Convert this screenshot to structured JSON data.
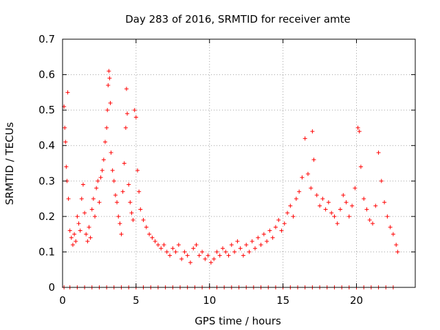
{
  "chart_data": {
    "type": "scatter",
    "title": "Day 283 of 2016, SRMTID for receiver amte",
    "xlabel": "GPS time / hours",
    "ylabel": "SRMTID / TECUs",
    "xlim": [
      0,
      24
    ],
    "ylim": [
      0,
      0.7
    ],
    "xticks": [
      0,
      5,
      10,
      15,
      20
    ],
    "xtick_labels": [
      "0",
      "5",
      "10",
      "15",
      "20"
    ],
    "yticks": [
      0,
      0.1,
      0.2,
      0.3,
      0.4,
      0.5,
      0.6,
      0.7
    ],
    "ytick_labels": [
      "0",
      "0.1",
      "0.2",
      "0.3",
      "0.4",
      "0.5",
      "0.6",
      "0.7"
    ],
    "grid": true,
    "marker": "+",
    "series": [
      {
        "name": "SRMTID",
        "color": "#ff0000",
        "x": [
          0.1,
          0.15,
          0.2,
          0.25,
          0.3,
          0.35,
          0.4,
          0.5,
          0.6,
          0.7,
          0.8,
          0.9,
          1.0,
          1.1,
          1.2,
          1.3,
          1.4,
          1.5,
          1.6,
          1.7,
          1.8,
          1.9,
          2.0,
          2.1,
          2.2,
          2.3,
          2.4,
          2.5,
          2.6,
          2.7,
          2.8,
          2.9,
          3.0,
          3.05,
          3.1,
          3.15,
          3.2,
          3.25,
          3.3,
          3.4,
          3.5,
          3.6,
          3.7,
          3.8,
          3.9,
          4.0,
          4.1,
          4.2,
          4.3,
          4.35,
          4.4,
          4.5,
          4.6,
          4.7,
          4.8,
          4.9,
          5.0,
          5.1,
          5.2,
          5.3,
          5.5,
          5.7,
          5.9,
          6.1,
          6.3,
          6.5,
          6.7,
          6.9,
          7.1,
          7.3,
          7.5,
          7.7,
          7.9,
          8.1,
          8.3,
          8.5,
          8.7,
          8.9,
          9.1,
          9.3,
          9.5,
          9.7,
          9.9,
          10.1,
          10.3,
          10.5,
          10.7,
          10.9,
          11.1,
          11.3,
          11.5,
          11.7,
          11.9,
          12.1,
          12.3,
          12.5,
          12.7,
          12.9,
          13.1,
          13.3,
          13.5,
          13.7,
          13.9,
          14.1,
          14.3,
          14.5,
          14.7,
          14.9,
          15.1,
          15.3,
          15.5,
          15.7,
          15.9,
          16.1,
          16.3,
          16.5,
          16.7,
          16.9,
          17.0,
          17.1,
          17.3,
          17.5,
          17.7,
          17.9,
          18.1,
          18.3,
          18.5,
          18.7,
          18.9,
          19.1,
          19.3,
          19.5,
          19.7,
          19.9,
          20.1,
          20.2,
          20.3,
          20.5,
          20.7,
          20.9,
          21.1,
          21.3,
          21.5,
          21.7,
          21.9,
          22.1,
          22.3,
          22.5,
          22.7,
          22.8
        ],
        "y": [
          0.51,
          0.45,
          0.41,
          0.34,
          0.3,
          0.55,
          0.25,
          0.16,
          0.14,
          0.12,
          0.15,
          0.13,
          0.2,
          0.18,
          0.16,
          0.25,
          0.29,
          0.21,
          0.15,
          0.13,
          0.17,
          0.14,
          0.22,
          0.25,
          0.2,
          0.28,
          0.3,
          0.24,
          0.31,
          0.33,
          0.36,
          0.41,
          0.45,
          0.5,
          0.57,
          0.61,
          0.59,
          0.52,
          0.38,
          0.33,
          0.3,
          0.26,
          0.24,
          0.2,
          0.18,
          0.15,
          0.27,
          0.35,
          0.45,
          0.56,
          0.49,
          0.29,
          0.24,
          0.21,
          0.19,
          0.5,
          0.48,
          0.33,
          0.27,
          0.22,
          0.19,
          0.17,
          0.15,
          0.14,
          0.13,
          0.12,
          0.11,
          0.12,
          0.1,
          0.09,
          0.11,
          0.1,
          0.12,
          0.08,
          0.1,
          0.09,
          0.07,
          0.11,
          0.12,
          0.09,
          0.1,
          0.08,
          0.09,
          0.07,
          0.08,
          0.1,
          0.09,
          0.11,
          0.1,
          0.09,
          0.12,
          0.1,
          0.13,
          0.11,
          0.09,
          0.12,
          0.1,
          0.13,
          0.11,
          0.14,
          0.12,
          0.15,
          0.13,
          0.16,
          0.14,
          0.17,
          0.19,
          0.16,
          0.18,
          0.21,
          0.23,
          0.2,
          0.25,
          0.27,
          0.31,
          0.42,
          0.32,
          0.28,
          0.44,
          0.36,
          0.26,
          0.23,
          0.25,
          0.22,
          0.24,
          0.21,
          0.2,
          0.18,
          0.22,
          0.26,
          0.24,
          0.2,
          0.23,
          0.28,
          0.45,
          0.44,
          0.34,
          0.25,
          0.22,
          0.19,
          0.18,
          0.23,
          0.38,
          0.3,
          0.24,
          0.2,
          0.17,
          0.15,
          0.12,
          0.1
        ],
        "zero_x": [
          0.1,
          0.5,
          1.0,
          1.5,
          2.0,
          2.5,
          3.0,
          3.5,
          4.0,
          4.5,
          5.0,
          5.5,
          6.0,
          6.5,
          7.0,
          7.5,
          8.0,
          8.5,
          9.0,
          9.5,
          10.0,
          10.5,
          11.0,
          11.5,
          12.0,
          12.5,
          13.0,
          13.5,
          14.0,
          14.5,
          15.0,
          15.5,
          16.0,
          16.5,
          17.0,
          17.5,
          18.0,
          18.5,
          19.0,
          19.5,
          20.0,
          20.5,
          21.0,
          21.5,
          22.0,
          22.5
        ]
      }
    ]
  }
}
